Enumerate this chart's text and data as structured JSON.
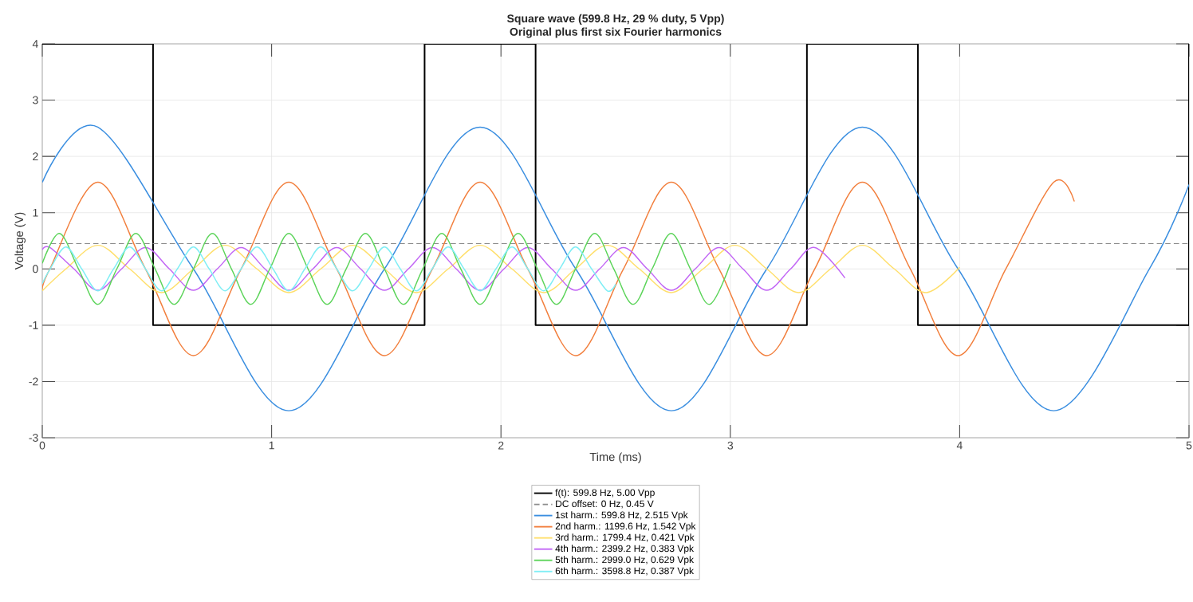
{
  "chart_data": {
    "type": "line",
    "title": "Square wave (599.8 Hz, 29 % duty, 5 Vpp)",
    "subtitle": "Original plus first six Fourier harmonics",
    "xlabel": "Time (ms)",
    "ylabel": "Voltage (V)",
    "xlim": [
      0,
      5
    ],
    "ylim": [
      -3,
      4
    ],
    "xticks": [
      0,
      1,
      2,
      3,
      4,
      5
    ],
    "yticks": [
      -3,
      -2,
      -1,
      0,
      1,
      2,
      3,
      4
    ],
    "grid": true,
    "legend": "bottom",
    "marker": "none",
    "series": [
      {
        "name": "f(t): 599.8 Hz, 5.00 Vpp",
        "type": "step",
        "color": "#000000",
        "x": [
          0,
          0.483,
          1.667,
          2.151,
          3.334,
          3.818,
          5
        ],
        "values": [
          4,
          -1,
          4,
          -1,
          4,
          -1,
          4
        ]
      },
      {
        "name": "DC offset: 0 Hz, 0.45 V",
        "line_style": "dashed",
        "color": "#8c8c8c",
        "x": [
          0,
          5
        ],
        "values": [
          0.45,
          0.45
        ]
      },
      {
        "name": "1st harm.: 599.8 Hz, 2.515 Vpk",
        "color": "#3a8ee0",
        "x": [
          0,
          0.242,
          0.659,
          1.075,
          1.492,
          1.909,
          2.326,
          2.743,
          3.159,
          3.576,
          3.993,
          4.41,
          4.827,
          5
        ],
        "values": [
          1.54,
          2.52,
          0,
          -2.52,
          0,
          2.52,
          0,
          -2.52,
          0,
          2.52,
          0,
          -2.52,
          0,
          1.5
        ]
      },
      {
        "name": "2nd harm.: 1199.6 Hz, 1.542 Vpk",
        "color": "#f27f3d",
        "x": [
          0,
          0.033,
          0.242,
          0.45,
          0.659,
          0.867,
          1.075,
          1.284,
          1.492,
          1.701,
          1.909,
          2.117,
          2.326,
          2.534,
          2.743,
          2.951,
          3.159,
          3.368,
          3.576,
          3.785,
          3.993,
          4.201,
          4.41,
          4.5
        ],
        "values": [
          -0.38,
          0,
          1.54,
          0,
          -1.54,
          0,
          1.54,
          0,
          -1.54,
          0,
          1.54,
          0,
          -1.54,
          0,
          1.54,
          0,
          -1.54,
          0,
          1.54,
          0,
          -1.54,
          0,
          1.54,
          1.2
        ]
      },
      {
        "name": "3rd harm.: 1799.4 Hz, 0.421 Vpk",
        "color": "#ffdf6b",
        "x": [
          0,
          0.103,
          0.242,
          0.381,
          0.52,
          0.659,
          0.797,
          0.936,
          1.075,
          1.214,
          1.353,
          1.492,
          1.631,
          1.77,
          1.909,
          2.048,
          2.187,
          2.325,
          2.464,
          2.603,
          2.742,
          2.881,
          3.02,
          3.159,
          3.298,
          3.437,
          3.576,
          3.715,
          3.854,
          4
        ],
        "values": [
          -0.39,
          0,
          0.42,
          0,
          -0.42,
          0,
          0.42,
          0,
          -0.42,
          0,
          0.42,
          0,
          -0.42,
          0,
          0.42,
          0,
          -0.42,
          0,
          0.42,
          0,
          -0.42,
          0,
          0.42,
          0,
          -0.42,
          0,
          0.42,
          0,
          -0.42,
          0.03
        ]
      },
      {
        "name": "4th harm.: 2399.2 Hz, 0.383 Vpk",
        "color": "#c266f5",
        "x": [
          0,
          0.033,
          0.138,
          0.242,
          0.346,
          0.45,
          0.554,
          0.659,
          0.763,
          0.867,
          0.971,
          1.075,
          1.18,
          1.284,
          1.388,
          1.492,
          1.596,
          1.701,
          1.805,
          1.909,
          2.013,
          2.117,
          2.221,
          2.326,
          2.43,
          2.534,
          2.638,
          2.743,
          2.847,
          2.951,
          3.055,
          3.159,
          3.263,
          3.368,
          3.5
        ],
        "values": [
          0.34,
          0.38,
          0,
          -0.38,
          0,
          0.38,
          0,
          -0.38,
          0,
          0.38,
          0,
          -0.38,
          0,
          0.38,
          0,
          -0.38,
          0,
          0.38,
          0,
          -0.38,
          0,
          0.38,
          0,
          -0.38,
          0,
          0.38,
          0,
          -0.38,
          0,
          0.38,
          0,
          -0.38,
          0,
          0.38,
          -0.16
        ]
      },
      {
        "name": "5th harm.: 2999.0 Hz, 0.629 Vpk",
        "color": "#5cd45a",
        "x": [
          0,
          0.075,
          0.158,
          0.242,
          0.325,
          0.408,
          0.492,
          0.575,
          0.659,
          0.742,
          0.825,
          0.909,
          0.992,
          1.075,
          1.159,
          1.242,
          1.325,
          1.409,
          1.492,
          1.575,
          1.659,
          1.742,
          1.825,
          1.909,
          1.992,
          2.075,
          2.159,
          2.242,
          2.325,
          2.409,
          2.492,
          2.576,
          2.659,
          2.742,
          2.826,
          2.909,
          3
        ],
        "values": [
          0.1,
          0.63,
          0,
          -0.63,
          0,
          0.63,
          0,
          -0.63,
          0,
          0.63,
          0,
          -0.63,
          0,
          0.63,
          0,
          -0.63,
          0,
          0.63,
          0,
          -0.63,
          0,
          0.63,
          0,
          -0.63,
          0,
          0.63,
          0,
          -0.63,
          0,
          0.63,
          0,
          -0.63,
          0,
          0.63,
          0,
          -0.63,
          0.09
        ]
      },
      {
        "name": "6th harm.: 3598.8 Hz, 0.387 Vpk",
        "color": "#80eef5",
        "x": [
          0,
          0.034,
          0.103,
          0.172,
          0.242,
          0.311,
          0.381,
          0.45,
          0.52,
          0.589,
          0.659,
          0.728,
          0.797,
          0.867,
          0.936,
          1.006,
          1.075,
          1.145,
          1.214,
          1.284,
          1.353,
          1.423,
          1.492,
          1.561,
          1.631,
          1.7,
          1.77,
          1.839,
          1.909,
          1.978,
          2.048,
          2.117,
          2.186,
          2.256,
          2.325,
          2.395,
          2.464,
          2.5
        ],
        "values": [
          -0.26,
          0,
          0.39,
          0,
          -0.39,
          0,
          0.39,
          0,
          -0.39,
          0,
          0.39,
          0,
          -0.39,
          0,
          0.39,
          0,
          -0.39,
          0,
          0.39,
          0,
          -0.39,
          0,
          0.39,
          0,
          -0.39,
          0,
          0.39,
          0,
          -0.39,
          0,
          0.39,
          0,
          -0.39,
          0,
          0.39,
          0,
          -0.39,
          -0.27
        ]
      }
    ]
  }
}
